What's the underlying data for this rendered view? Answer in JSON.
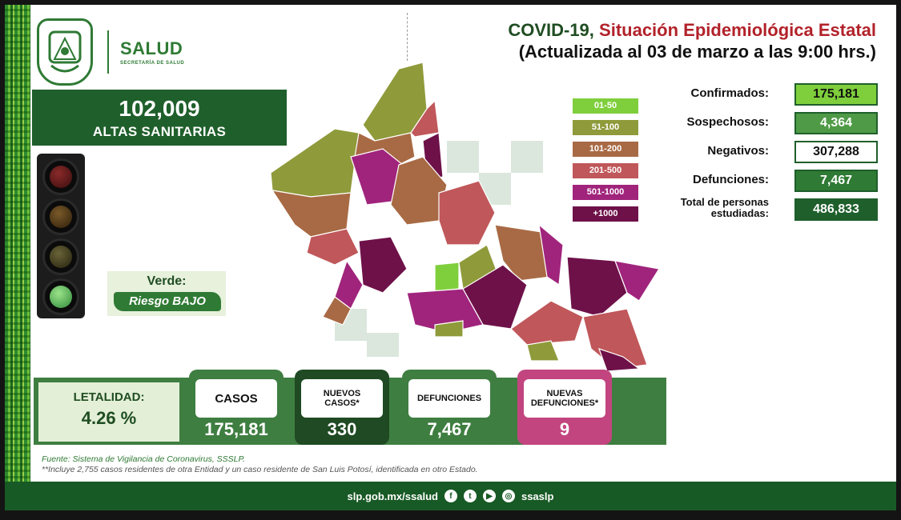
{
  "brand": {
    "name": "SALUD",
    "subtitle": "SECRETARÍA DE SALUD"
  },
  "header": {
    "title_part1": "COVID-19,",
    "title_part2": "Situación Epidemiológica Estatal",
    "updated": "(Actualizada al 03 de marzo a las 9:00 hrs.)"
  },
  "altas": {
    "value": "102,009",
    "label": "ALTAS SANITARIAS"
  },
  "semaforo": {
    "title": "Verde:",
    "level": "Riesgo BAJO",
    "active_light": "green"
  },
  "legend": [
    {
      "label": "01-50",
      "color": "#7fcf3c"
    },
    {
      "label": "51-100",
      "color": "#8f9a3a"
    },
    {
      "label": "101-200",
      "color": "#a86a44"
    },
    {
      "label": "201-500",
      "color": "#c0575a"
    },
    {
      "label": "501-1000",
      "color": "#a0247c"
    },
    {
      "label": "+1000",
      "color": "#6e1149"
    }
  ],
  "stats": [
    {
      "label": "Confirmados:",
      "value": "175,181",
      "bg": "#7fcf3c",
      "fg": "#111111"
    },
    {
      "label": "Sospechosos:",
      "value": "4,364",
      "bg": "#4e9a46",
      "fg": "#ffffff"
    },
    {
      "label": "Negativos:",
      "value": "307,288",
      "bg": "#ffffff",
      "fg": "#111111"
    },
    {
      "label": "Defunciones:",
      "value": "7,467",
      "bg": "#2f7a34",
      "fg": "#ffffff"
    },
    {
      "label": "Total de personas estudiadas:",
      "value": "486,833",
      "bg": "#1f5f2b",
      "fg": "#ffffff"
    }
  ],
  "letalidad": {
    "label": "LETALIDAD:",
    "value": "4.26 %"
  },
  "metrics": [
    {
      "label": "CASOS",
      "value": "175,181",
      "color": "#3f7e41"
    },
    {
      "label": "NUEVOS CASOS*",
      "value": "330",
      "color": "#1f4a23"
    },
    {
      "label": "DEFUNCIONES",
      "value": "7,467",
      "color": "#3f7e41"
    },
    {
      "label": "NUEVAS DEFUNCIONES*",
      "value": "9",
      "color": "#c2457f"
    }
  ],
  "sources": {
    "line1": "Fuente: Sistema de Vigilancia de Coronavirus, SSSLP.",
    "line2": "**Incluye 2,755 casos residentes de otra Entidad y un caso residente de San Luis Potosí, identificada en otro Estado."
  },
  "footer": {
    "url": "slp.gob.mx/ssalud",
    "handle": "ssaslp",
    "icons": [
      "facebook-icon",
      "twitter-icon",
      "youtube-icon",
      "instagram-icon"
    ]
  }
}
